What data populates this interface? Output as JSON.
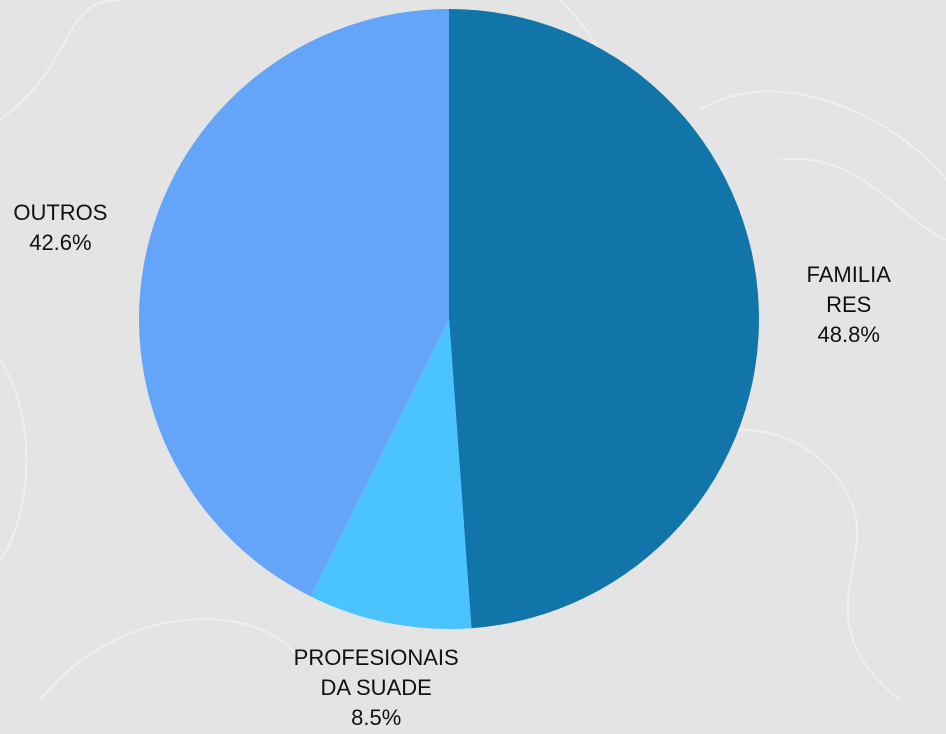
{
  "chart_data": {
    "type": "pie",
    "categories": [
      "FAMILIARES",
      "PROFESIONAIS DA SUADE",
      "OUTROS"
    ],
    "values": [
      48.8,
      8.5,
      42.6
    ],
    "value_labels": [
      "48.8%",
      "8.5%",
      "42.6%"
    ],
    "colors": [
      "#1175aa",
      "#4bc3ff",
      "#64a5fa"
    ]
  }
}
